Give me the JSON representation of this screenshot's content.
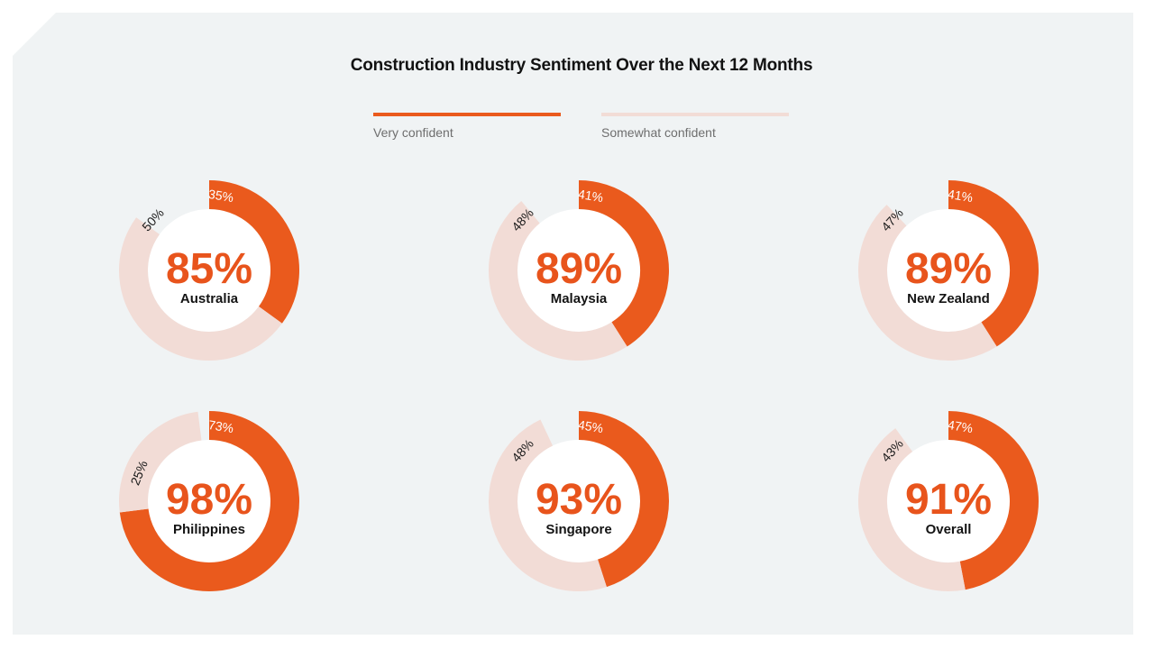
{
  "colors": {
    "very_confident": "#ea5a1d",
    "somewhat_confident": "#f2dcd6",
    "total_text": "#e8541c"
  },
  "chart_data": {
    "type": "donut",
    "title": "Construction Industry Sentiment Over the Next 12 Months",
    "legend_position": "top-center",
    "legend": [
      "Very confident",
      "Somewhat confident"
    ],
    "charts": [
      {
        "name": "Australia",
        "total": "85%",
        "very": 35,
        "somewhat": 50,
        "very_label": "35%",
        "somewhat_label": "50%"
      },
      {
        "name": "Malaysia",
        "total": "89%",
        "very": 41,
        "somewhat": 48,
        "very_label": "41%",
        "somewhat_label": "48%"
      },
      {
        "name": "New Zealand",
        "total": "89%",
        "very": 41,
        "somewhat": 47,
        "very_label": "41%",
        "somewhat_label": "47%"
      },
      {
        "name": "Philippines",
        "total": "98%",
        "very": 73,
        "somewhat": 25,
        "very_label": "73%",
        "somewhat_label": "25%"
      },
      {
        "name": "Singapore",
        "total": "93%",
        "very": 45,
        "somewhat": 48,
        "very_label": "45%",
        "somewhat_label": "48%"
      },
      {
        "name": "Overall",
        "total": "91%",
        "very": 47,
        "somewhat": 43,
        "very_label": "47%",
        "somewhat_label": "43%"
      }
    ]
  }
}
